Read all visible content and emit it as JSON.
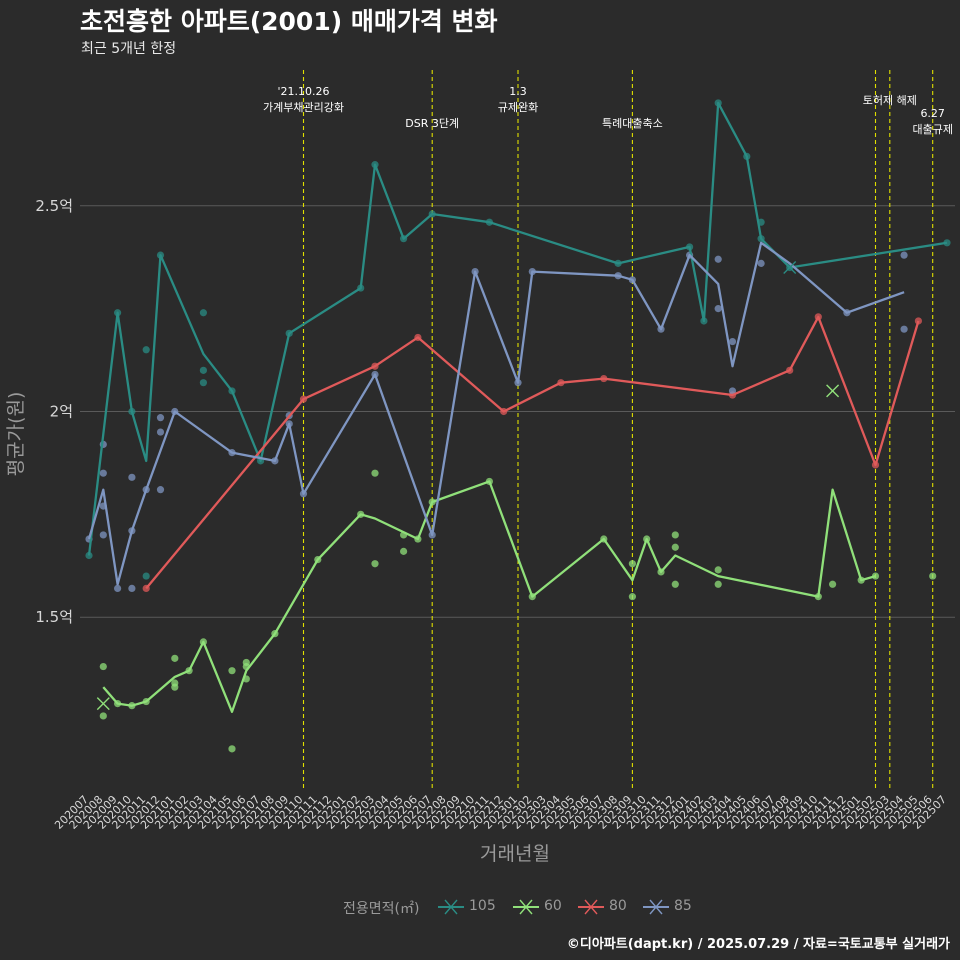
{
  "header": {
    "title": "초전흥한 아파트(2001) 매매가격 변화",
    "subtitle": "최근 5개년 한정"
  },
  "footer": {
    "credit": "©디아파트(dapt.kr) / 2025.07.29 / 자료=국토교통부 실거래가"
  },
  "colors": {
    "background": "#2b2b2b",
    "grid": "#5a5a5a",
    "event_line": "#e0e000",
    "series_105": "#2a8c84",
    "series_60": "#90e07a",
    "series_80": "#e05a5a",
    "series_85": "#7f96c2"
  },
  "chart_data": {
    "type": "line",
    "title": "초전흥한 아파트(2001) 매매가격 변화",
    "subtitle": "최근 5개년 한정",
    "xlabel": "거래년월",
    "ylabel": "평균가(원)",
    "categories": [
      "202007",
      "202008",
      "202009",
      "202010",
      "202011",
      "202012",
      "202101",
      "202102",
      "202103",
      "202104",
      "202105",
      "202106",
      "202107",
      "202108",
      "202109",
      "202110",
      "202111",
      "202112",
      "202201",
      "202202",
      "202203",
      "202204",
      "202205",
      "202206",
      "202207",
      "202208",
      "202209",
      "202210",
      "202211",
      "202212",
      "202301",
      "202302",
      "202303",
      "202304",
      "202305",
      "202306",
      "202307",
      "202308",
      "202309",
      "202310",
      "202311",
      "202312",
      "202401",
      "202402",
      "202403",
      "202404",
      "202405",
      "202406",
      "202407",
      "202408",
      "202409",
      "202410",
      "202411",
      "202412",
      "202501",
      "202502",
      "202503",
      "202504",
      "202505",
      "202506",
      "202507"
    ],
    "y_ticks": [
      {
        "value": 1.5,
        "label": "1.5억"
      },
      {
        "value": 2.0,
        "label": "2억"
      },
      {
        "value": 2.5,
        "label": "2.5억"
      }
    ],
    "ylim": [
      1.08,
      2.83
    ],
    "y_unit": "억원",
    "grid": true,
    "legend": {
      "title": "전용면적(㎡)",
      "position": "bottom",
      "entries": [
        "105",
        "60",
        "80",
        "85"
      ]
    },
    "events": [
      {
        "x": "202110",
        "label_lines": [
          "'21.10.26",
          "가계부채관리강화"
        ],
        "level": 1
      },
      {
        "x": "202207",
        "label_lines": [
          "DSR 3단계"
        ],
        "level": 2
      },
      {
        "x": "202301",
        "label_lines": [
          "1.3",
          "규제완화"
        ],
        "level": 1
      },
      {
        "x": "202309",
        "label_lines": [
          "특례대출축소"
        ],
        "level": 2
      },
      {
        "x": "202502",
        "label_lines": [],
        "level": 1
      },
      {
        "x": "202503",
        "label_lines": [
          "토허제 해제"
        ],
        "level": 1
      },
      {
        "x": "202506",
        "label_lines": [
          "6.27",
          "대출규제"
        ],
        "level": 1.5
      }
    ],
    "series": [
      {
        "name": "105",
        "line": [
          [
            "202007",
            1.65
          ],
          [
            "202009",
            2.24
          ],
          [
            "202010",
            2.0
          ],
          [
            "202011",
            1.88
          ],
          [
            "202012",
            2.38
          ],
          [
            "202103",
            2.14
          ],
          [
            "202105",
            2.05
          ],
          [
            "202107",
            1.88
          ],
          [
            "202109",
            2.19
          ],
          [
            "202202",
            2.3
          ],
          [
            "202203",
            2.6
          ],
          [
            "202205",
            2.42
          ],
          [
            "202207",
            2.48
          ],
          [
            "202211",
            2.46
          ],
          [
            "202308",
            2.36
          ],
          [
            "202401",
            2.4
          ],
          [
            "202402",
            2.22
          ],
          [
            "202403",
            2.75
          ],
          [
            "202405",
            2.62
          ],
          [
            "202406",
            2.42
          ],
          [
            "202408",
            2.35
          ],
          [
            "202507",
            2.41
          ]
        ],
        "points": [
          [
            "202007",
            1.65
          ],
          [
            "202009",
            2.24
          ],
          [
            "202010",
            2.0
          ],
          [
            "202011",
            2.15
          ],
          [
            "202011",
            1.6
          ],
          [
            "202012",
            2.38
          ],
          [
            "202103",
            2.24
          ],
          [
            "202103",
            2.1
          ],
          [
            "202103",
            2.07
          ],
          [
            "202105",
            2.05
          ],
          [
            "202107",
            1.88
          ],
          [
            "202109",
            2.19
          ],
          [
            "202202",
            2.3
          ],
          [
            "202203",
            2.6
          ],
          [
            "202205",
            2.42
          ],
          [
            "202207",
            2.48
          ],
          [
            "202211",
            2.46
          ],
          [
            "202308",
            2.36
          ],
          [
            "202401",
            2.4
          ],
          [
            "202402",
            2.22
          ],
          [
            "202403",
            2.75
          ],
          [
            "202405",
            2.62
          ],
          [
            "202406",
            2.46
          ],
          [
            "202406",
            2.42
          ],
          [
            "202408",
            2.35
          ],
          [
            "202507",
            2.41
          ]
        ]
      },
      {
        "name": "60",
        "line": [
          [
            "202008",
            1.33
          ],
          [
            "202009",
            1.29
          ],
          [
            "202010",
            1.285
          ],
          [
            "202011",
            1.295
          ],
          [
            "202101",
            1.355
          ],
          [
            "202102",
            1.37
          ],
          [
            "202103",
            1.44
          ],
          [
            "202105",
            1.27
          ],
          [
            "202106",
            1.37
          ],
          [
            "202108",
            1.46
          ],
          [
            "202111",
            1.64
          ],
          [
            "202202",
            1.75
          ],
          [
            "202203",
            1.74
          ],
          [
            "202206",
            1.69
          ],
          [
            "202207",
            1.78
          ],
          [
            "202211",
            1.83
          ],
          [
            "202302",
            1.55
          ],
          [
            "202307",
            1.69
          ],
          [
            "202309",
            1.59
          ],
          [
            "202310",
            1.69
          ],
          [
            "202311",
            1.61
          ],
          [
            "202312",
            1.65
          ],
          [
            "202403",
            1.6
          ],
          [
            "202410",
            1.55
          ],
          [
            "202411",
            1.81
          ],
          [
            "202501",
            1.59
          ],
          [
            "202502",
            1.6
          ]
        ],
        "points": [
          [
            "202008",
            1.38
          ],
          [
            "202008",
            1.26
          ],
          [
            "202009",
            1.29
          ],
          [
            "202010",
            1.285
          ],
          [
            "202011",
            1.295
          ],
          [
            "202101",
            1.4
          ],
          [
            "202101",
            1.34
          ],
          [
            "202101",
            1.33
          ],
          [
            "202102",
            1.37
          ],
          [
            "202103",
            1.44
          ],
          [
            "202105",
            1.37
          ],
          [
            "202105",
            1.18
          ],
          [
            "202106",
            1.39
          ],
          [
            "202106",
            1.38
          ],
          [
            "202106",
            1.35
          ],
          [
            "202108",
            1.46
          ],
          [
            "202111",
            1.64
          ],
          [
            "202202",
            1.75
          ],
          [
            "202203",
            1.85
          ],
          [
            "202203",
            1.63
          ],
          [
            "202205",
            1.7
          ],
          [
            "202205",
            1.66
          ],
          [
            "202206",
            1.69
          ],
          [
            "202207",
            1.78
          ],
          [
            "202211",
            1.83
          ],
          [
            "202302",
            1.55
          ],
          [
            "202307",
            1.69
          ],
          [
            "202309",
            1.63
          ],
          [
            "202309",
            1.55
          ],
          [
            "202310",
            1.69
          ],
          [
            "202311",
            1.61
          ],
          [
            "202312",
            1.7
          ],
          [
            "202312",
            1.67
          ],
          [
            "202312",
            1.58
          ],
          [
            "202403",
            1.615
          ],
          [
            "202403",
            1.58
          ],
          [
            "202410",
            1.55
          ],
          [
            "202411",
            1.58
          ],
          [
            "202501",
            1.59
          ],
          [
            "202502",
            1.6
          ],
          [
            "202506",
            1.6
          ]
        ],
        "crosses": [
          [
            "202008",
            1.29
          ],
          [
            "202411",
            2.05
          ]
        ]
      },
      {
        "name": "80",
        "line": [
          [
            "202011",
            1.57
          ],
          [
            "202110",
            2.03
          ],
          [
            "202203",
            2.11
          ],
          [
            "202206",
            2.18
          ],
          [
            "202212",
            2.0
          ],
          [
            "202304",
            2.07
          ],
          [
            "202307",
            2.08
          ],
          [
            "202404",
            2.04
          ],
          [
            "202408",
            2.1
          ],
          [
            "202410",
            2.23
          ],
          [
            "202502",
            1.87
          ],
          [
            "202505",
            2.22
          ]
        ],
        "points": [
          [
            "202011",
            1.57
          ],
          [
            "202110",
            2.03
          ],
          [
            "202203",
            2.11
          ],
          [
            "202206",
            2.18
          ],
          [
            "202212",
            2.0
          ],
          [
            "202304",
            2.07
          ],
          [
            "202307",
            2.08
          ],
          [
            "202404",
            2.04
          ],
          [
            "202408",
            2.1
          ],
          [
            "202410",
            2.23
          ],
          [
            "202502",
            1.87
          ],
          [
            "202505",
            2.22
          ]
        ]
      },
      {
        "name": "85",
        "line": [
          [
            "202007",
            1.69
          ],
          [
            "202008",
            1.81
          ],
          [
            "202009",
            1.58
          ],
          [
            "202010",
            1.71
          ],
          [
            "202011",
            1.81
          ],
          [
            "202101",
            2.0
          ],
          [
            "202105",
            1.9
          ],
          [
            "202108",
            1.88
          ],
          [
            "202109",
            1.97
          ],
          [
            "202110",
            1.8
          ],
          [
            "202203",
            2.09
          ],
          [
            "202207",
            1.7
          ],
          [
            "202210",
            2.34
          ],
          [
            "202301",
            2.07
          ],
          [
            "202302",
            2.34
          ],
          [
            "202308",
            2.33
          ],
          [
            "202309",
            2.32
          ],
          [
            "202311",
            2.2
          ],
          [
            "202401",
            2.38
          ],
          [
            "202403",
            2.31
          ],
          [
            "202404",
            2.11
          ],
          [
            "202406",
            2.41
          ],
          [
            "202408",
            2.36
          ],
          [
            "202412",
            2.24
          ],
          [
            "202504",
            2.29
          ]
        ],
        "points": [
          [
            "202007",
            1.69
          ],
          [
            "202008",
            1.92
          ],
          [
            "202008",
            1.85
          ],
          [
            "202008",
            1.77
          ],
          [
            "202008",
            1.7
          ],
          [
            "202009",
            1.57
          ],
          [
            "202010",
            1.84
          ],
          [
            "202010",
            1.71
          ],
          [
            "202010",
            1.57
          ],
          [
            "202011",
            1.81
          ],
          [
            "202012",
            1.985
          ],
          [
            "202012",
            1.95
          ],
          [
            "202012",
            1.81
          ],
          [
            "202101",
            2.0
          ],
          [
            "202105",
            1.9
          ],
          [
            "202108",
            1.88
          ],
          [
            "202109",
            1.99
          ],
          [
            "202109",
            1.97
          ],
          [
            "202110",
            1.8
          ],
          [
            "202203",
            2.09
          ],
          [
            "202207",
            1.7
          ],
          [
            "202210",
            2.34
          ],
          [
            "202301",
            2.07
          ],
          [
            "202302",
            2.34
          ],
          [
            "202308",
            2.33
          ],
          [
            "202309",
            2.32
          ],
          [
            "202311",
            2.2
          ],
          [
            "202401",
            2.38
          ],
          [
            "202403",
            2.37
          ],
          [
            "202403",
            2.25
          ],
          [
            "202404",
            2.17
          ],
          [
            "202404",
            2.05
          ],
          [
            "202406",
            2.36
          ],
          [
            "202412",
            2.24
          ],
          [
            "202504",
            2.38
          ],
          [
            "202504",
            2.2
          ]
        ]
      }
    ]
  }
}
